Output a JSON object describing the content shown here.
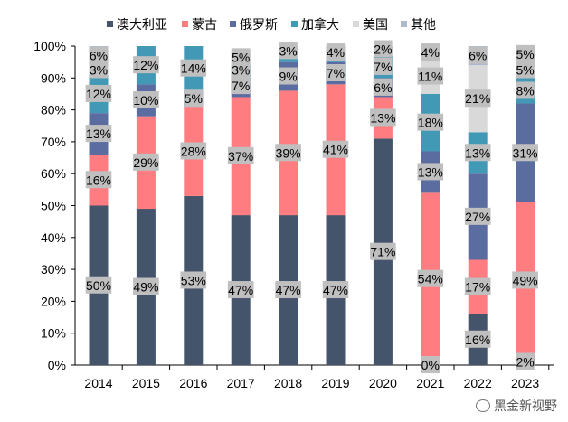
{
  "chart_data": {
    "type": "bar",
    "stacked": true,
    "categories": [
      "2014",
      "2015",
      "2016",
      "2017",
      "2018",
      "2019",
      "2020",
      "2021",
      "2022",
      "2023"
    ],
    "ylim": [
      0,
      100
    ],
    "yticks": [
      "0%",
      "10%",
      "20%",
      "30%",
      "40%",
      "50%",
      "60%",
      "70%",
      "80%",
      "90%",
      "100%"
    ],
    "grid": false,
    "legend": "top",
    "series": [
      {
        "name": "澳大利亚",
        "color": "#44546a",
        "values": [
          50,
          49,
          53,
          47,
          47,
          47,
          71,
          0,
          16,
          2
        ]
      },
      {
        "name": "蒙古",
        "color": "#ff7c80",
        "values": [
          16,
          29,
          28,
          37,
          39,
          41,
          13,
          54,
          17,
          49
        ]
      },
      {
        "name": "俄罗斯",
        "color": "#5b6ca0",
        "values": [
          13,
          10,
          5,
          7,
          9,
          7,
          6,
          13,
          27,
          31
        ]
      },
      {
        "name": "加拿大",
        "color": "#4199b5",
        "values": [
          12,
          12,
          14,
          3,
          1,
          1,
          7,
          18,
          13,
          8
        ]
      },
      {
        "name": "美国",
        "color": "#d9d9d9",
        "values": [
          3,
          0,
          0,
          0,
          1,
          0,
          1,
          11,
          21,
          5
        ]
      },
      {
        "name": "其他",
        "color": "#adb9ca",
        "values": [
          6,
          1,
          1,
          5,
          3,
          4,
          2,
          4,
          6,
          5
        ]
      }
    ]
  },
  "watermark": "黑金新视野"
}
